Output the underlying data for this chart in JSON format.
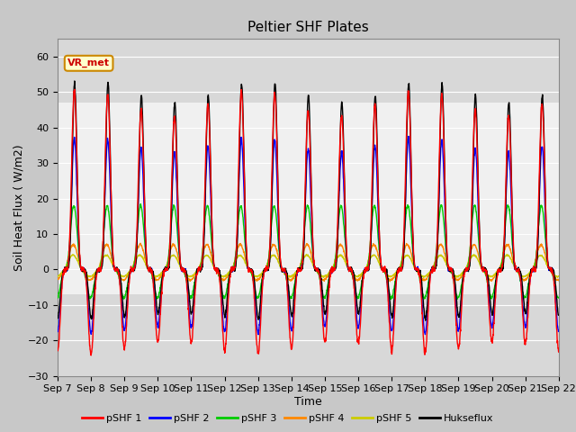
{
  "title": "Peltier SHF Plates",
  "xlabel": "Time",
  "ylabel": "Soil Heat Flux ( W/m2)",
  "ylim": [
    -30,
    65
  ],
  "yticks": [
    -30,
    -20,
    -10,
    0,
    10,
    20,
    30,
    40,
    50,
    60
  ],
  "xtick_labels": [
    "Sep 7",
    "Sep 8",
    "Sep 9",
    "Sep 10",
    "Sep 11",
    "Sep 12",
    "Sep 13",
    "Sep 14",
    "Sep 15",
    "Sep 16",
    "Sep 17",
    "Sep 18",
    "Sep 19",
    "Sep 20",
    "Sep 21",
    "Sep 22"
  ],
  "series_colors": {
    "pSHF 1": "#ff0000",
    "pSHF 2": "#0000ff",
    "pSHF 3": "#00cc00",
    "pSHF 4": "#ff8800",
    "pSHF 5": "#cccc00",
    "Hukseflux": "#000000"
  },
  "annotation_text": "VR_met",
  "bg_color": "#c8c8c8",
  "plot_bg_color": "#ffffff",
  "band_color_dark": "#d8d8d8",
  "band_color_light": "#f0f0f0",
  "n_days": 15,
  "pts_per_day": 144,
  "title_fontsize": 11,
  "label_fontsize": 9,
  "tick_fontsize": 8
}
